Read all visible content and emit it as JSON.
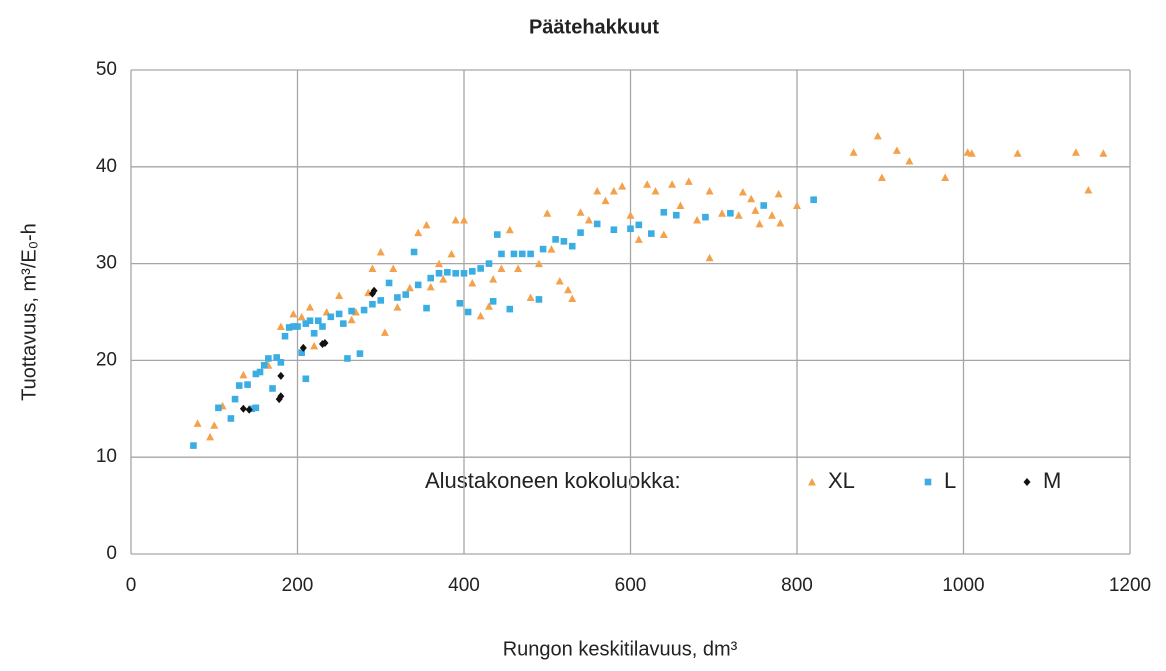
{
  "chart_data": {
    "type": "scatter",
    "title": "Päätehakkuut",
    "x_label": "Rungon keskitilavuus, dm³",
    "y_label": "Tuottavuus, m³/E₀-h",
    "legend_title": "Alustakoneen kokoluokka:",
    "xlim": [
      0,
      1200
    ],
    "xticks": [
      0,
      200,
      400,
      600,
      800,
      1000,
      1200
    ],
    "ylim": [
      0,
      50
    ],
    "yticks": [
      0,
      10,
      20,
      30,
      40,
      50
    ],
    "grid": true,
    "series": [
      {
        "name": "XL",
        "color": "#f4a14b",
        "marker": "triangle",
        "x": [
          80,
          95,
          100,
          110,
          135,
          165,
          180,
          195,
          205,
          215,
          220,
          235,
          250,
          265,
          270,
          285,
          290,
          300,
          305,
          315,
          320,
          335,
          345,
          355,
          360,
          370,
          375,
          385,
          390,
          400,
          410,
          420,
          430,
          435,
          445,
          455,
          465,
          480,
          490,
          500,
          505,
          515,
          525,
          530,
          540,
          550,
          560,
          570,
          580,
          590,
          600,
          610,
          620,
          630,
          640,
          650,
          660,
          670,
          680,
          695,
          695,
          710,
          730,
          735,
          745,
          750,
          755,
          770,
          778,
          780,
          800,
          868,
          897,
          902,
          920,
          935,
          978,
          1005,
          1010,
          1065,
          1135,
          1150,
          1168
        ],
        "y": [
          13.5,
          12.1,
          13.3,
          15.3,
          18.5,
          19.5,
          23.5,
          24.8,
          24.5,
          25.5,
          21.5,
          25,
          26.7,
          24.2,
          25,
          27,
          29.5,
          31.2,
          22.9,
          29.5,
          25.5,
          27.5,
          33.2,
          34,
          27.6,
          30,
          28.4,
          31,
          34.5,
          34.5,
          28,
          24.6,
          25.6,
          28.4,
          29.5,
          33.5,
          29.5,
          26.5,
          30,
          35.2,
          31.5,
          28.2,
          27.3,
          26.4,
          35.3,
          34.5,
          37.5,
          36.5,
          37.5,
          38,
          35,
          32.5,
          38.2,
          37.5,
          33,
          38.2,
          36,
          38.5,
          34.5,
          30.6,
          37.5,
          35.2,
          35,
          37.4,
          36.7,
          35.5,
          34.1,
          35,
          37.2,
          34.2,
          36,
          41.5,
          43.2,
          38.9,
          41.7,
          40.6,
          38.9,
          41.5,
          41.4,
          41.4,
          41.5,
          37.6,
          41.4
        ]
      },
      {
        "name": "L",
        "color": "#3aade3",
        "marker": "square",
        "x": [
          75,
          105,
          120,
          125,
          130,
          140,
          145,
          150,
          150,
          155,
          160,
          165,
          170,
          175,
          180,
          185,
          190,
          195,
          200,
          205,
          210,
          210,
          215,
          220,
          225,
          230,
          240,
          250,
          255,
          260,
          265,
          275,
          280,
          290,
          300,
          310,
          320,
          330,
          340,
          345,
          355,
          360,
          370,
          380,
          390,
          395,
          400,
          405,
          410,
          420,
          430,
          435,
          440,
          445,
          455,
          460,
          470,
          480,
          490,
          495,
          510,
          520,
          530,
          540,
          560,
          580,
          600,
          610,
          625,
          640,
          655,
          690,
          720,
          760,
          820
        ],
        "y": [
          11.2,
          15.1,
          14,
          16,
          17.4,
          17.5,
          15,
          15.1,
          18.6,
          18.8,
          19.5,
          20.2,
          17.1,
          20.3,
          19.8,
          22.5,
          23.4,
          23.5,
          23.5,
          20.8,
          18.1,
          23.8,
          24.1,
          22.8,
          24.1,
          23.5,
          24.5,
          24.8,
          23.8,
          20.2,
          25.1,
          20.7,
          25.2,
          25.8,
          26.2,
          28,
          26.5,
          26.8,
          31.2,
          27.8,
          25.4,
          28.5,
          29,
          29.1,
          29,
          25.9,
          29,
          25,
          29.2,
          29.5,
          30,
          26.1,
          33,
          31,
          25.3,
          31,
          31,
          31,
          26.3,
          31.5,
          32.5,
          32.3,
          31.8,
          33.2,
          34.1,
          33.5,
          33.6,
          34,
          33.1,
          35.3,
          35,
          34.8,
          35.2,
          36,
          36.6
        ]
      },
      {
        "name": "M",
        "color": "#111111",
        "marker": "diamond",
        "x": [
          135,
          142,
          178,
          180,
          180,
          207,
          230,
          233,
          290,
          292
        ],
        "y": [
          15,
          14.9,
          16,
          16.3,
          18.4,
          21.3,
          21.7,
          21.8,
          26.9,
          27.2
        ]
      }
    ]
  }
}
